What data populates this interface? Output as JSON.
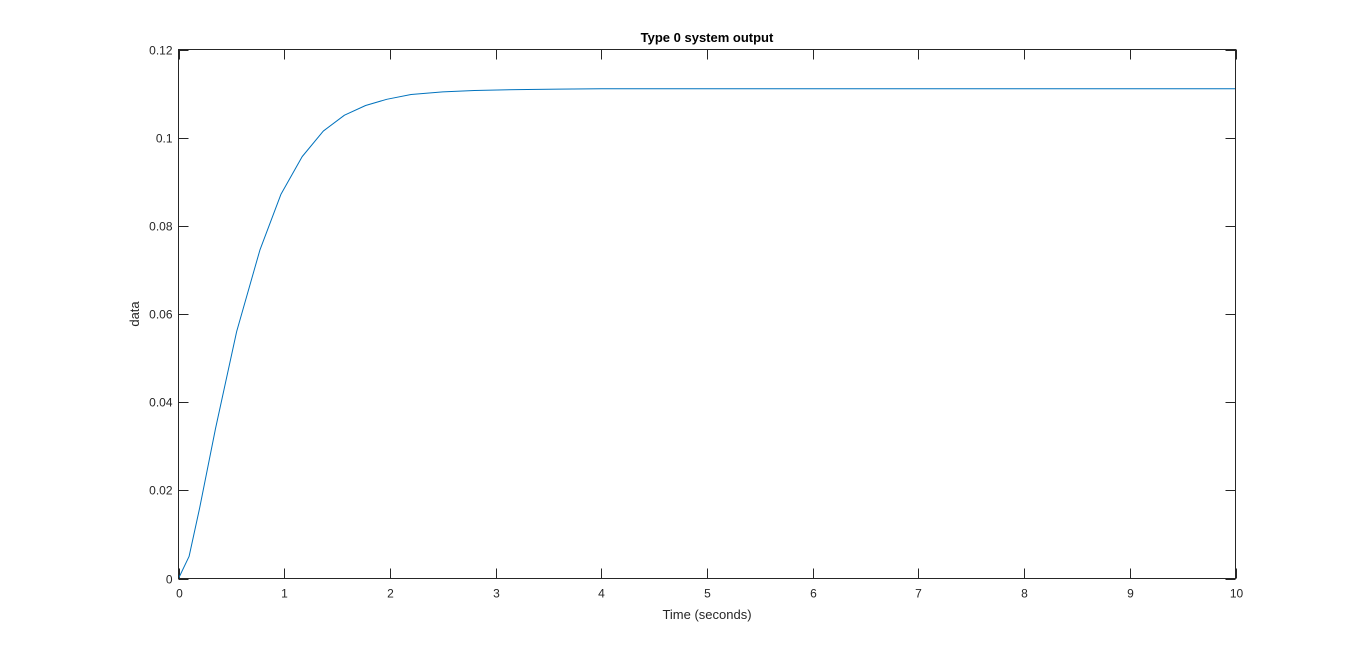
{
  "chart_data": {
    "type": "line",
    "title": "Type 0 system output",
    "xlabel": "Time (seconds)",
    "ylabel": "data",
    "xlim": [
      0,
      10
    ],
    "ylim": [
      0,
      0.12
    ],
    "xticks": [
      0,
      1,
      2,
      3,
      4,
      5,
      6,
      7,
      8,
      9,
      10
    ],
    "xtick_labels": [
      "0",
      "1",
      "2",
      "3",
      "4",
      "5",
      "6",
      "7",
      "8",
      "9",
      "10"
    ],
    "yticks": [
      0,
      0.02,
      0.04,
      0.06,
      0.08,
      0.1,
      0.12
    ],
    "ytick_labels": [
      "0",
      "0.02",
      "0.04",
      "0.06",
      "0.08",
      "0.1",
      "0.12"
    ],
    "grid": false,
    "line_color": "#0072BD",
    "series": [
      {
        "x": [
          0,
          0.1,
          0.2,
          0.35,
          0.55,
          0.77,
          0.97,
          1.17,
          1.37,
          1.57,
          1.77,
          1.97,
          2.2,
          2.5,
          2.8,
          3.2,
          3.6,
          4.0,
          5.0,
          6.0,
          7.0,
          8.0,
          9.0,
          10.0
        ],
        "y": [
          0,
          0.005,
          0.016,
          0.034,
          0.056,
          0.0745,
          0.0872,
          0.0957,
          0.1015,
          0.1051,
          0.1073,
          0.1087,
          0.1098,
          0.1104,
          0.1107,
          0.1109,
          0.111,
          0.1111,
          0.1111,
          0.1111,
          0.1111,
          0.1111,
          0.1111,
          0.1111
        ]
      }
    ]
  }
}
